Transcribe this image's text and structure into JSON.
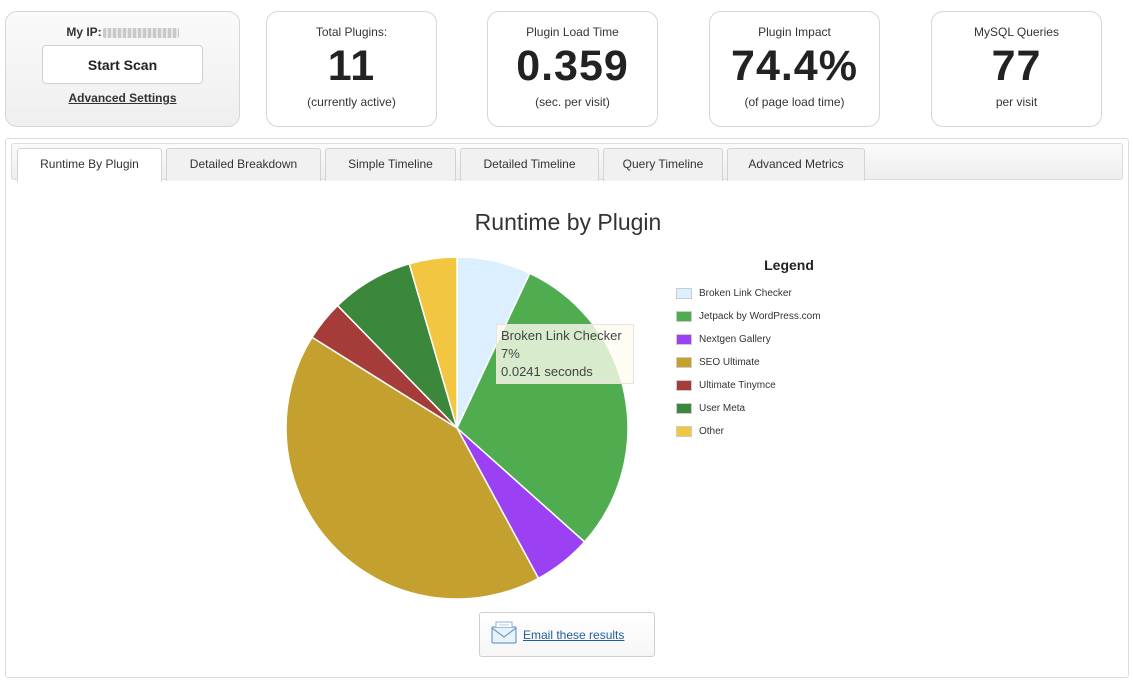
{
  "scan": {
    "ip_label": "My IP:",
    "start_label": "Start Scan",
    "advanced_label": "Advanced Settings"
  },
  "stats": [
    {
      "label": "Total Plugins:",
      "value": "11",
      "sub": "(currently active)"
    },
    {
      "label": "Plugin Load Time",
      "value": "0.359",
      "sub": "(sec. per visit)"
    },
    {
      "label": "Plugin Impact",
      "value": "74.4%",
      "sub": "(of page load time)"
    },
    {
      "label": "MySQL Queries",
      "value": "77",
      "sub": "per visit"
    }
  ],
  "tabs": [
    "Runtime By Plugin",
    "Detailed Breakdown",
    "Simple Timeline",
    "Detailed Timeline",
    "Query Timeline",
    "Advanced Metrics"
  ],
  "active_tab": "Runtime By Plugin",
  "tooltip": {
    "name": "Broken Link Checker",
    "percent": "7%",
    "time": "0.0241 seconds"
  },
  "email": {
    "label": "Email these results",
    "icon": "envelope-icon"
  },
  "chart_data": {
    "type": "pie",
    "title": "Runtime by Plugin",
    "legend_title": "Legend",
    "legend_position": "right",
    "slices": [
      {
        "label": "Broken Link Checker",
        "value": 7,
        "color": "#dcefff"
      },
      {
        "label": "Jetpack by WordPress.com",
        "value": 29.6,
        "color": "#4fad4f"
      },
      {
        "label": "Nextgen Gallery",
        "value": 5.5,
        "color": "#9b40f2"
      },
      {
        "label": "SEO Ultimate",
        "value": 41.8,
        "color": "#c4a02f"
      },
      {
        "label": "Ultimate Tinymce",
        "value": 3.8,
        "color": "#a53c3a"
      },
      {
        "label": "User Meta",
        "value": 7.8,
        "color": "#3b873b"
      },
      {
        "label": "Other",
        "value": 4.5,
        "color": "#f2c640"
      }
    ]
  }
}
